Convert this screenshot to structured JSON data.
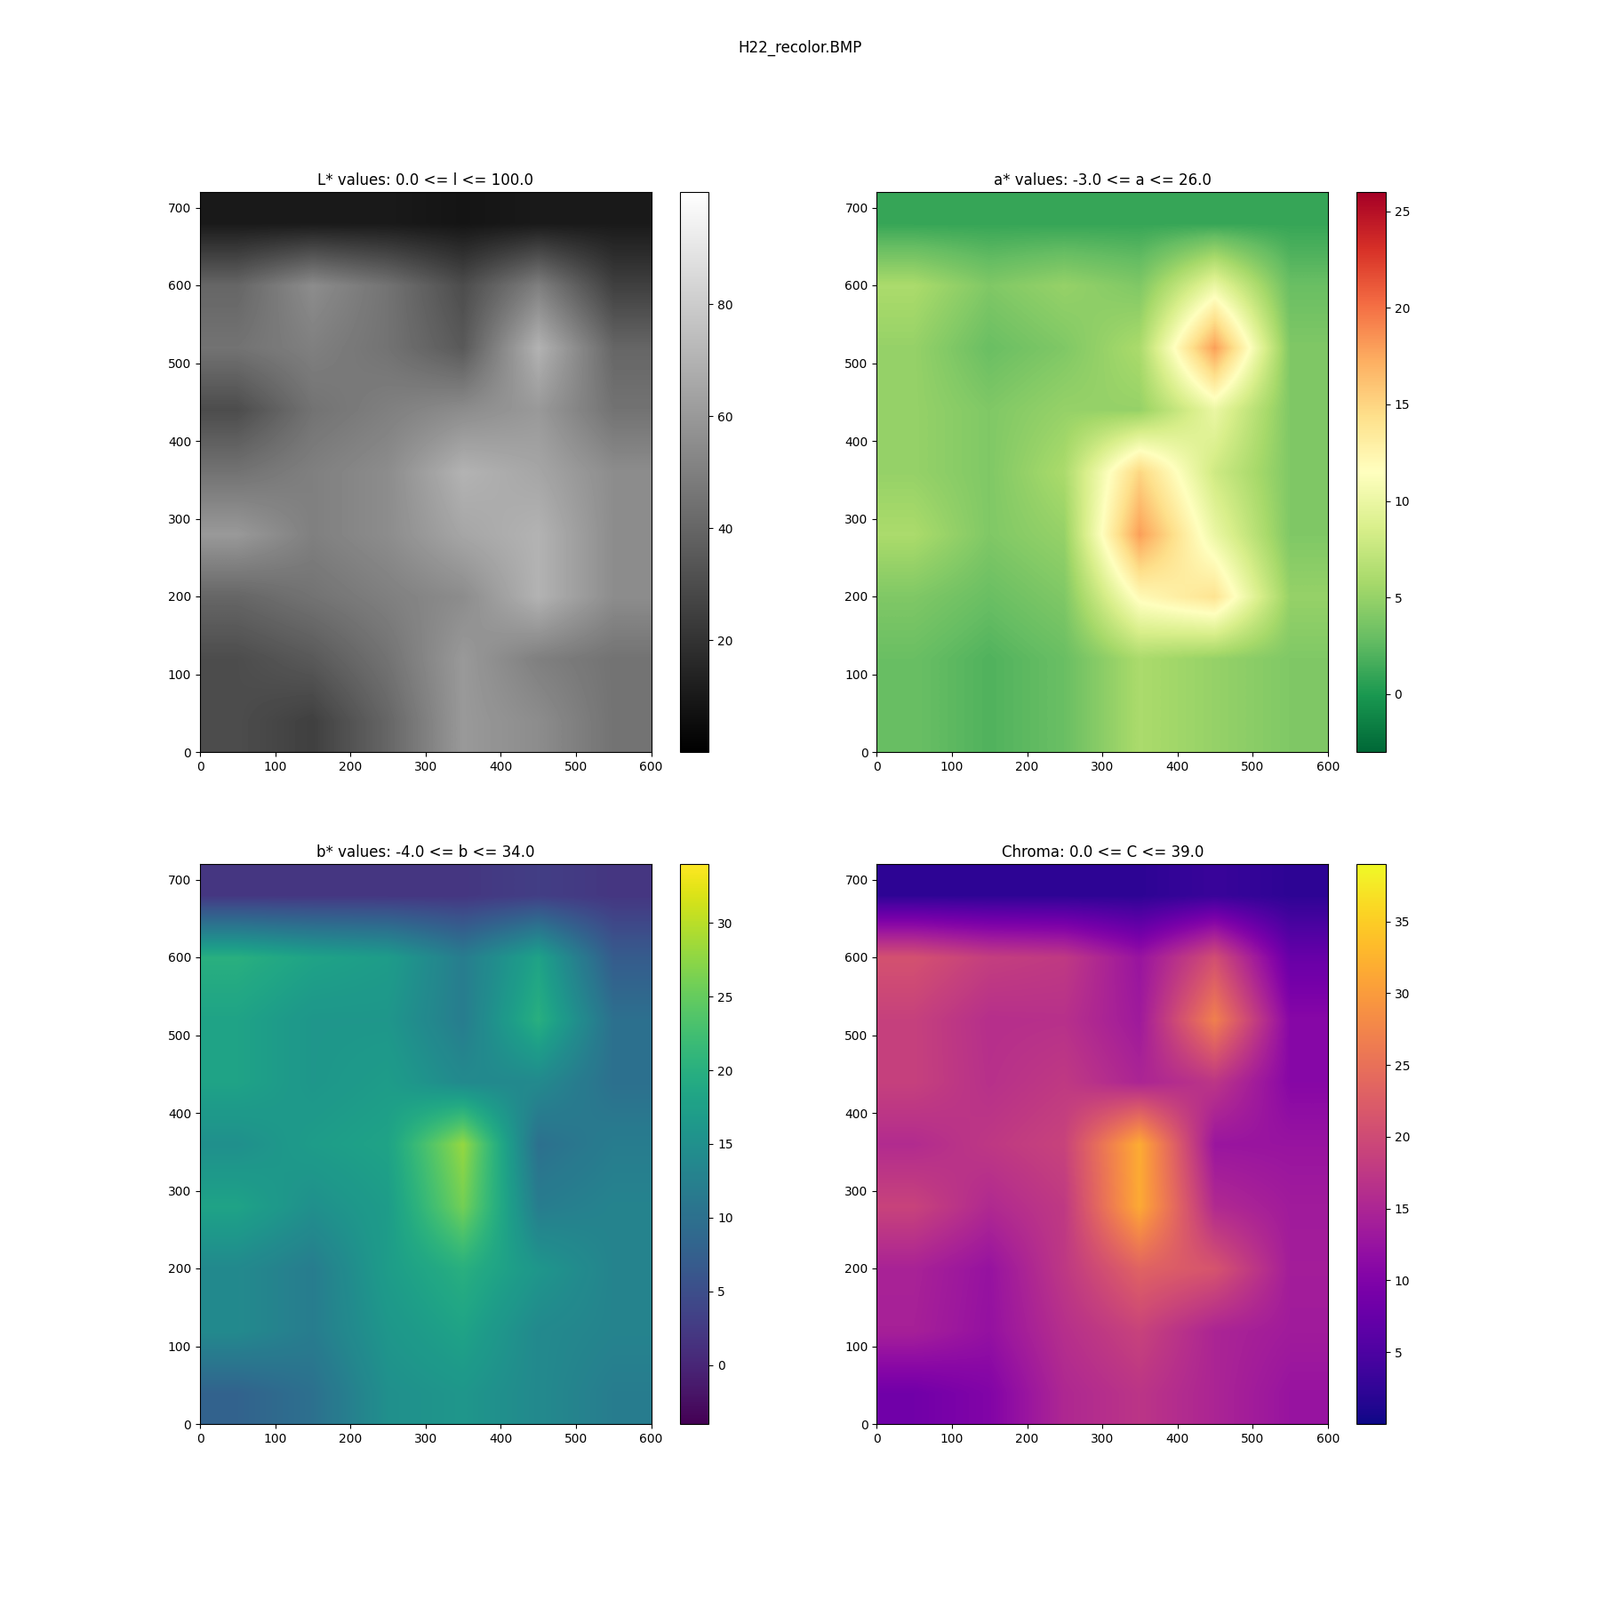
{
  "title": "H22_recolor.BMP",
  "chart_data": [
    {
      "type": "heatmap",
      "title": "L* values: 0.0 <= l <= 100.0",
      "color": "gray",
      "xlim": [
        0,
        600
      ],
      "ylim": [
        0,
        720
      ],
      "xticks": [
        0,
        100,
        200,
        300,
        400,
        500,
        600
      ],
      "yticks": [
        0,
        100,
        200,
        300,
        400,
        500,
        600,
        700
      ],
      "cells": [
        [
          30,
          25,
          40,
          60,
          55,
          45
        ],
        [
          30,
          35,
          45,
          60,
          50,
          45
        ],
        [
          40,
          45,
          50,
          55,
          70,
          55
        ],
        [
          60,
          50,
          55,
          65,
          70,
          55
        ],
        [
          45,
          50,
          55,
          70,
          65,
          55
        ],
        [
          30,
          45,
          50,
          55,
          60,
          45
        ],
        [
          45,
          50,
          45,
          35,
          70,
          40
        ],
        [
          40,
          55,
          45,
          30,
          50,
          25
        ],
        [
          10,
          10,
          10,
          8,
          10,
          10
        ]
      ],
      "colorbar_range": [
        0,
        100
      ],
      "colorbar_ticks": [
        20,
        40,
        60,
        80
      ]
    },
    {
      "type": "heatmap",
      "title": "a* values: -3.0 <= a <= 26.0",
      "color": "RdYlGn_r",
      "xlim": [
        0,
        600
      ],
      "ylim": [
        0,
        720
      ],
      "xticks": [
        0,
        100,
        200,
        300,
        400,
        500,
        600
      ],
      "yticks": [
        0,
        100,
        200,
        300,
        400,
        500,
        600,
        700
      ],
      "cells": [
        [
          3,
          2,
          3,
          6,
          5,
          4
        ],
        [
          3,
          2,
          3,
          6,
          5,
          4
        ],
        [
          4,
          3,
          4,
          12,
          14,
          5
        ],
        [
          6,
          4,
          5,
          18,
          10,
          4
        ],
        [
          5,
          4,
          6,
          15,
          8,
          4
        ],
        [
          5,
          4,
          5,
          5,
          10,
          4
        ],
        [
          5,
          3,
          4,
          6,
          18,
          4
        ],
        [
          6,
          4,
          5,
          4,
          10,
          3
        ],
        [
          1,
          1,
          1,
          1,
          1,
          1
        ]
      ],
      "colorbar_range": [
        -3,
        26
      ],
      "colorbar_ticks": [
        0,
        5,
        10,
        15,
        20,
        25
      ]
    },
    {
      "type": "heatmap",
      "title": "b* values: -4.0 <= b <= 34.0",
      "color": "viridis",
      "xlim": [
        0,
        600
      ],
      "ylim": [
        0,
        720
      ],
      "xticks": [
        0,
        100,
        200,
        300,
        400,
        500,
        600
      ],
      "yticks": [
        0,
        100,
        200,
        300,
        400,
        500,
        600,
        700
      ],
      "cells": [
        [
          8,
          10,
          15,
          16,
          14,
          12
        ],
        [
          14,
          12,
          16,
          18,
          14,
          13
        ],
        [
          14,
          12,
          17,
          20,
          16,
          13
        ],
        [
          18,
          15,
          17,
          26,
          12,
          13
        ],
        [
          15,
          17,
          18,
          28,
          10,
          12
        ],
        [
          18,
          16,
          17,
          14,
          14,
          10
        ],
        [
          18,
          16,
          16,
          12,
          20,
          10
        ],
        [
          20,
          18,
          17,
          12,
          18,
          7
        ],
        [
          2,
          2,
          2,
          2,
          3,
          2
        ]
      ],
      "colorbar_range": [
        -4,
        34
      ],
      "colorbar_ticks": [
        0,
        5,
        10,
        15,
        20,
        25,
        30
      ]
    },
    {
      "type": "heatmap",
      "title": "Chroma: 0.0 <= C <= 39.0",
      "color": "plasma",
      "xlim": [
        0,
        600
      ],
      "ylim": [
        0,
        720
      ],
      "xticks": [
        0,
        100,
        200,
        300,
        400,
        500,
        600
      ],
      "yticks": [
        0,
        100,
        200,
        300,
        400,
        500,
        600,
        700
      ],
      "cells": [
        [
          8.5,
          10.2,
          15.3,
          17.1,
          14.9,
          12.6
        ],
        [
          14.3,
          12.2,
          16.3,
          19.0,
          14.9,
          13.6
        ],
        [
          14.6,
          12.4,
          17.5,
          23.3,
          21.3,
          13.9
        ],
        [
          19.0,
          15.5,
          17.7,
          31.6,
          15.6,
          13.6
        ],
        [
          15.8,
          17.5,
          19.0,
          31.8,
          12.8,
          12.6
        ],
        [
          18.7,
          16.5,
          17.7,
          14.9,
          17.2,
          10.8
        ],
        [
          18.7,
          16.3,
          16.5,
          13.4,
          26.9,
          10.8
        ],
        [
          20.9,
          18.4,
          17.7,
          12.6,
          20.6,
          7.6
        ],
        [
          2.2,
          2.2,
          2.2,
          2.2,
          3.2,
          2.2
        ]
      ],
      "colorbar_range": [
        0,
        39
      ],
      "colorbar_ticks": [
        5,
        10,
        15,
        20,
        25,
        30,
        35
      ]
    }
  ]
}
